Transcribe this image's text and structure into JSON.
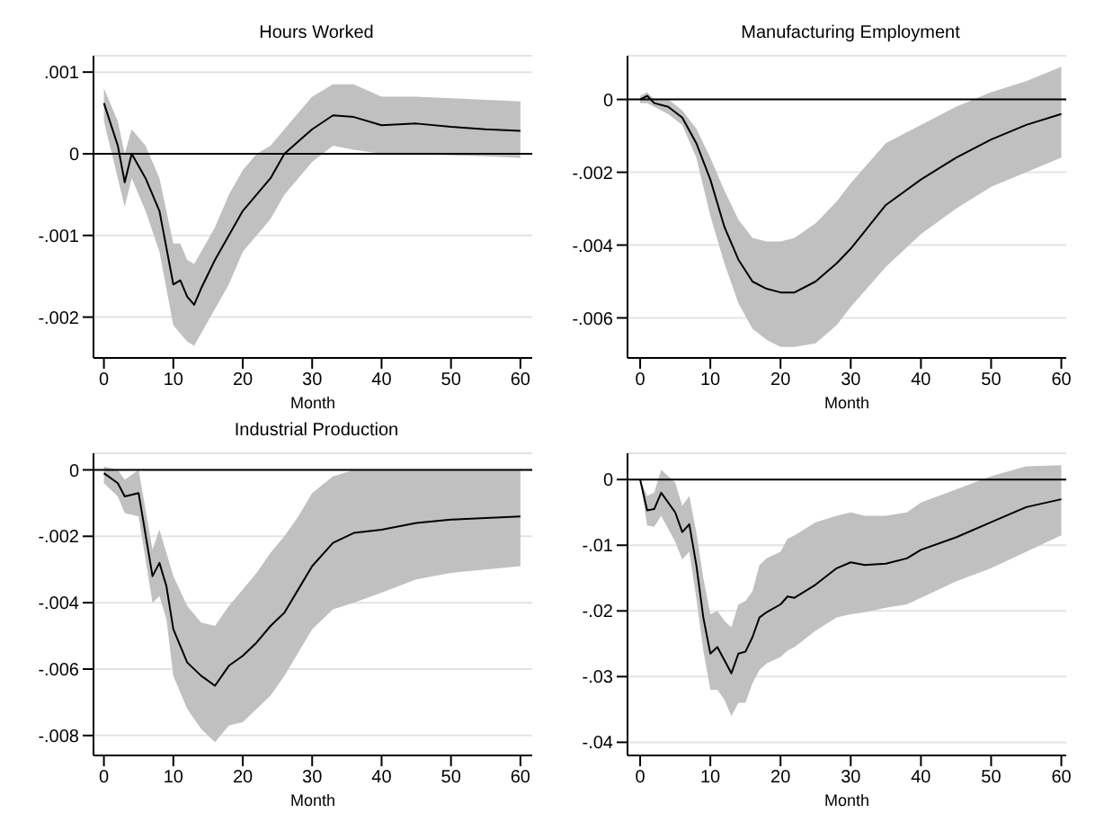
{
  "chart_data": [
    {
      "type": "line",
      "title": "Hours Worked",
      "xlabel": "Month",
      "xlim": [
        -1.5,
        61.7
      ],
      "xticks": [
        0,
        10,
        20,
        30,
        40,
        50,
        60
      ],
      "ylim": [
        -0.0025,
        0.0012
      ],
      "yticks": [
        {
          "value": -0.002,
          "label": "-.002"
        },
        {
          "value": -0.001,
          "label": "-.001"
        },
        {
          "value": 0,
          "label": "0"
        },
        {
          "value": 0.001,
          "label": ".001"
        }
      ],
      "grid": "y",
      "legend": false,
      "ref_lines": [
        {
          "axis": "y",
          "value": 0,
          "color": "#000000"
        }
      ],
      "x": [
        0,
        2,
        3,
        4,
        6,
        8,
        10,
        11,
        12,
        13,
        14,
        16,
        18,
        20,
        22,
        24,
        26,
        28,
        30,
        33,
        36,
        40,
        45,
        50,
        55,
        60
      ],
      "series": [
        {
          "color": "#000000",
          "values": [
            0.00062,
            0.0001,
            -0.00035,
            0,
            -0.0003,
            -0.0007,
            -0.0016,
            -0.00155,
            -0.00175,
            -0.00185,
            -0.00165,
            -0.0013,
            -0.001,
            -0.0007,
            -0.0005,
            -0.0003,
            0,
            0.00015,
            0.0003,
            0.00047,
            0.00045,
            0.00035,
            0.00037,
            0.00033,
            0.0003,
            0.00028
          ],
          "lower": [
            0.0004,
            -0.0003,
            -0.00065,
            -0.0003,
            -0.0007,
            -0.0012,
            -0.0021,
            -0.0022,
            -0.0023,
            -0.00235,
            -0.0022,
            -0.0019,
            -0.0016,
            -0.0012,
            -0.001,
            -0.0008,
            -0.0005,
            -0.0003,
            -0.0001,
            0.0001,
            5e-05,
            0,
            0,
            -2e-05,
            -3e-05,
            -5e-05
          ],
          "upper": [
            0.0008,
            0.0004,
            0,
            0.0003,
            0.0001,
            -0.0003,
            -0.0011,
            -0.0011,
            -0.0013,
            -0.00135,
            -0.0012,
            -0.0009,
            -0.0005,
            -0.0002,
            0,
            0.0001,
            0.0003,
            0.0005,
            0.0007,
            0.00085,
            0.00085,
            0.0007,
            0.0007,
            0.00068,
            0.00066,
            0.00064
          ]
        }
      ]
    },
    {
      "type": "line",
      "title": "Manufacturing Employment",
      "xlabel": "Month",
      "xlim": [
        -1.8,
        60.7
      ],
      "xticks": [
        0,
        10,
        20,
        30,
        40,
        50,
        60
      ],
      "ylim": [
        -0.0071,
        0.0012
      ],
      "yticks": [
        {
          "value": -0.006,
          "label": "-.006"
        },
        {
          "value": -0.004,
          "label": "-.004"
        },
        {
          "value": -0.002,
          "label": "-.002"
        },
        {
          "value": 0,
          "label": "0"
        }
      ],
      "grid": "y",
      "legend": false,
      "ref_lines": [
        {
          "axis": "y",
          "value": 0,
          "color": "#000000"
        }
      ],
      "x": [
        0,
        1,
        2,
        4,
        6,
        8,
        10,
        12,
        14,
        16,
        18,
        20,
        22,
        25,
        28,
        30,
        35,
        40,
        45,
        50,
        55,
        60
      ],
      "series": [
        {
          "color": "#000000",
          "values": [
            0,
            0.0001,
            -0.0001,
            -0.0002,
            -0.0005,
            -0.0012,
            -0.0022,
            -0.0035,
            -0.0044,
            -0.005,
            -0.0052,
            -0.0053,
            -0.0053,
            -0.005,
            -0.0045,
            -0.0041,
            -0.0029,
            -0.0022,
            -0.0016,
            -0.0011,
            -0.0007,
            -0.0004
          ],
          "lower": [
            -0.0001,
            -0.0001,
            -0.0002,
            -0.0004,
            -0.0007,
            -0.0016,
            -0.0032,
            -0.0045,
            -0.0056,
            -0.0063,
            -0.0066,
            -0.0068,
            -0.0068,
            -0.0067,
            -0.0062,
            -0.0057,
            -0.0046,
            -0.0037,
            -0.003,
            -0.0024,
            -0.002,
            -0.0016
          ],
          "upper": [
            0.0001,
            0.0002,
            0,
            0,
            -0.0003,
            -0.0008,
            -0.0016,
            -0.0025,
            -0.0033,
            -0.0038,
            -0.0039,
            -0.0039,
            -0.0038,
            -0.0034,
            -0.0028,
            -0.0023,
            -0.0012,
            -0.0007,
            -0.0002,
            0.0002,
            0.0005,
            0.0009
          ]
        }
      ]
    },
    {
      "type": "line",
      "title": "Industrial Production",
      "xlabel": "Month",
      "xlim": [
        -1.5,
        61.7
      ],
      "xticks": [
        0,
        10,
        20,
        30,
        40,
        50,
        60
      ],
      "ylim": [
        -0.0086,
        0.0005
      ],
      "yticks": [
        {
          "value": -0.008,
          "label": "-.008"
        },
        {
          "value": -0.006,
          "label": "-.006"
        },
        {
          "value": -0.004,
          "label": "-.004"
        },
        {
          "value": -0.002,
          "label": "-.002"
        },
        {
          "value": 0,
          "label": "0"
        }
      ],
      "grid": "y",
      "legend": false,
      "ref_lines": [
        {
          "axis": "y",
          "value": 0,
          "color": "#000000"
        }
      ],
      "x": [
        0,
        2,
        3,
        5,
        7,
        8,
        9,
        10,
        12,
        14,
        16,
        18,
        20,
        22,
        24,
        26,
        28,
        30,
        33,
        36,
        40,
        45,
        50,
        55,
        60
      ],
      "series": [
        {
          "color": "#000000",
          "values": [
            -0.0001,
            -0.0004,
            -0.0008,
            -0.0007,
            -0.0032,
            -0.0028,
            -0.0035,
            -0.0048,
            -0.0058,
            -0.0062,
            -0.0065,
            -0.0059,
            -0.0056,
            -0.0052,
            -0.0047,
            -0.0043,
            -0.0036,
            -0.0029,
            -0.0022,
            -0.0019,
            -0.0018,
            -0.0016,
            -0.0015,
            -0.00145,
            -0.0014
          ],
          "lower": [
            -0.0004,
            -0.0008,
            -0.0013,
            -0.0014,
            -0.004,
            -0.0038,
            -0.0045,
            -0.0062,
            -0.0072,
            -0.0078,
            -0.0082,
            -0.0077,
            -0.0076,
            -0.0072,
            -0.0068,
            -0.0062,
            -0.0055,
            -0.0048,
            -0.0042,
            -0.004,
            -0.0037,
            -0.0033,
            -0.0031,
            -0.003,
            -0.0029
          ],
          "upper": [
            0.0001,
            0,
            -0.0003,
            0,
            -0.0024,
            -0.0018,
            -0.0025,
            -0.0032,
            -0.0041,
            -0.0046,
            -0.0047,
            -0.0041,
            -0.0036,
            -0.0031,
            -0.0025,
            -0.002,
            -0.0014,
            -0.0007,
            -0.0002,
            0,
            0,
            0,
            0,
            0,
            0
          ]
        }
      ]
    },
    {
      "type": "line",
      "xlabel": "Month",
      "xlim": [
        -1.8,
        60.7
      ],
      "xticks": [
        0,
        10,
        20,
        30,
        40,
        50,
        60
      ],
      "ylim": [
        -0.042,
        0.004
      ],
      "yticks": [
        {
          "value": -0.04,
          "label": "-.04"
        },
        {
          "value": -0.03,
          "label": "-.03"
        },
        {
          "value": -0.02,
          "label": "-.02"
        },
        {
          "value": -0.01,
          "label": "-.01"
        },
        {
          "value": 0,
          "label": "0"
        }
      ],
      "grid": "y",
      "legend": false,
      "ref_lines": [
        {
          "axis": "y",
          "value": 0,
          "color": "#000000"
        }
      ],
      "x": [
        0,
        1,
        2,
        3,
        5,
        6,
        7,
        8,
        9,
        10,
        11,
        12,
        13,
        14,
        15,
        16,
        17,
        18,
        20,
        21,
        22,
        25,
        28,
        30,
        32,
        35,
        38,
        40,
        45,
        50,
        55,
        60
      ],
      "series": [
        {
          "color": "#000000",
          "values": [
            0,
            -0.0047,
            -0.0045,
            -0.002,
            -0.005,
            -0.008,
            -0.0068,
            -0.013,
            -0.021,
            -0.0265,
            -0.0255,
            -0.0275,
            -0.0295,
            -0.0265,
            -0.0262,
            -0.024,
            -0.021,
            -0.0202,
            -0.019,
            -0.0178,
            -0.018,
            -0.016,
            -0.0135,
            -0.0126,
            -0.013,
            -0.0128,
            -0.012,
            -0.0107,
            -0.0088,
            -0.0065,
            -0.0042,
            -0.003
          ],
          "lower": [
            0,
            -0.007,
            -0.0072,
            -0.0055,
            -0.0095,
            -0.0122,
            -0.011,
            -0.018,
            -0.026,
            -0.032,
            -0.032,
            -0.0335,
            -0.036,
            -0.034,
            -0.034,
            -0.031,
            -0.029,
            -0.028,
            -0.027,
            -0.026,
            -0.0255,
            -0.023,
            -0.021,
            -0.0205,
            -0.0202,
            -0.0195,
            -0.019,
            -0.018,
            -0.0155,
            -0.0135,
            -0.011,
            -0.0085
          ],
          "upper": [
            0,
            -0.0025,
            -0.002,
            0.0015,
            -0.0005,
            -0.004,
            -0.0025,
            -0.008,
            -0.015,
            -0.0205,
            -0.02,
            -0.0215,
            -0.0225,
            -0.019,
            -0.0185,
            -0.017,
            -0.013,
            -0.012,
            -0.011,
            -0.009,
            -0.0085,
            -0.0065,
            -0.0055,
            -0.005,
            -0.0055,
            -0.0055,
            -0.005,
            -0.0035,
            -0.0015,
            0.0005,
            0.002,
            0.0022
          ]
        }
      ]
    }
  ]
}
